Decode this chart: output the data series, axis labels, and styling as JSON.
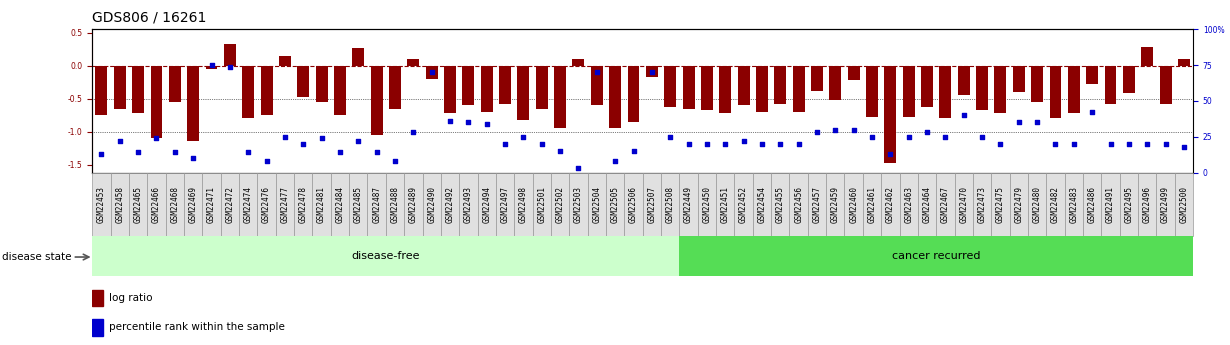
{
  "title": "GDS806 / 16261",
  "categories": [
    "GSM22453",
    "GSM22458",
    "GSM22465",
    "GSM22466",
    "GSM22468",
    "GSM22469",
    "GSM22471",
    "GSM22472",
    "GSM22474",
    "GSM22476",
    "GSM22477",
    "GSM22478",
    "GSM22481",
    "GSM22484",
    "GSM22485",
    "GSM22487",
    "GSM22488",
    "GSM22489",
    "GSM22490",
    "GSM22492",
    "GSM22493",
    "GSM22494",
    "GSM22497",
    "GSM22498",
    "GSM22501",
    "GSM22502",
    "GSM22503",
    "GSM22504",
    "GSM22505",
    "GSM22506",
    "GSM22507",
    "GSM22508",
    "GSM22449",
    "GSM22450",
    "GSM22451",
    "GSM22452",
    "GSM22454",
    "GSM22455",
    "GSM22456",
    "GSM22457",
    "GSM22459",
    "GSM22460",
    "GSM22461",
    "GSM22462",
    "GSM22463",
    "GSM22464",
    "GSM22467",
    "GSM22470",
    "GSM22473",
    "GSM22475",
    "GSM22479",
    "GSM22480",
    "GSM22482",
    "GSM22483",
    "GSM22486",
    "GSM22491",
    "GSM22495",
    "GSM22496",
    "GSM22499",
    "GSM22500"
  ],
  "log_ratio": [
    -0.75,
    -0.65,
    -0.72,
    -1.1,
    -0.55,
    -1.15,
    -0.05,
    0.33,
    -0.8,
    -0.75,
    0.15,
    -0.48,
    -0.55,
    -0.75,
    0.27,
    -1.05,
    -0.65,
    0.1,
    -0.2,
    -0.72,
    -0.6,
    -0.7,
    -0.58,
    -0.82,
    -0.65,
    -0.95,
    0.1,
    -0.6,
    -0.95,
    -0.85,
    -0.18,
    -0.62,
    -0.65,
    -0.68,
    -0.72,
    -0.6,
    -0.7,
    -0.58,
    -0.7,
    -0.38,
    -0.52,
    -0.22,
    -0.78,
    -1.48,
    -0.78,
    -0.62,
    -0.8,
    -0.45,
    -0.68,
    -0.72,
    -0.4,
    -0.55,
    -0.8,
    -0.72,
    -0.28,
    -0.58,
    -0.42,
    0.28,
    -0.58,
    0.1
  ],
  "percentile": [
    13,
    22,
    14,
    24,
    14,
    10,
    75,
    74,
    14,
    8,
    25,
    20,
    24,
    14,
    22,
    14,
    8,
    28,
    70,
    36,
    35,
    34,
    20,
    25,
    20,
    15,
    3,
    70,
    8,
    15,
    70,
    25,
    20,
    20,
    20,
    22,
    20,
    20,
    20,
    28,
    30,
    30,
    25,
    13,
    25,
    28,
    25,
    40,
    25,
    20,
    35,
    35,
    20,
    20,
    42,
    20,
    20,
    20,
    20,
    18
  ],
  "disease_free_count": 32,
  "cancer_recurred_count": 28,
  "bar_color": "#8B0000",
  "dot_color": "#0000CD",
  "disease_free_color": "#CCFFCC",
  "cancer_recurred_color": "#55DD55",
  "ylim": [
    -1.62,
    0.55
  ],
  "right_ylim": [
    0,
    100
  ],
  "right_yticks": [
    0,
    25,
    50,
    75,
    100
  ],
  "yticks_left": [
    -1.5,
    -1.0,
    -0.5,
    0.0,
    0.5
  ],
  "hline_zero": 0.0,
  "hline_minus05": -0.5,
  "hline_minus1": -1.0,
  "title_fontsize": 10,
  "tick_fontsize": 5.5,
  "label_fontsize": 7.5,
  "band_label_fontsize": 8
}
